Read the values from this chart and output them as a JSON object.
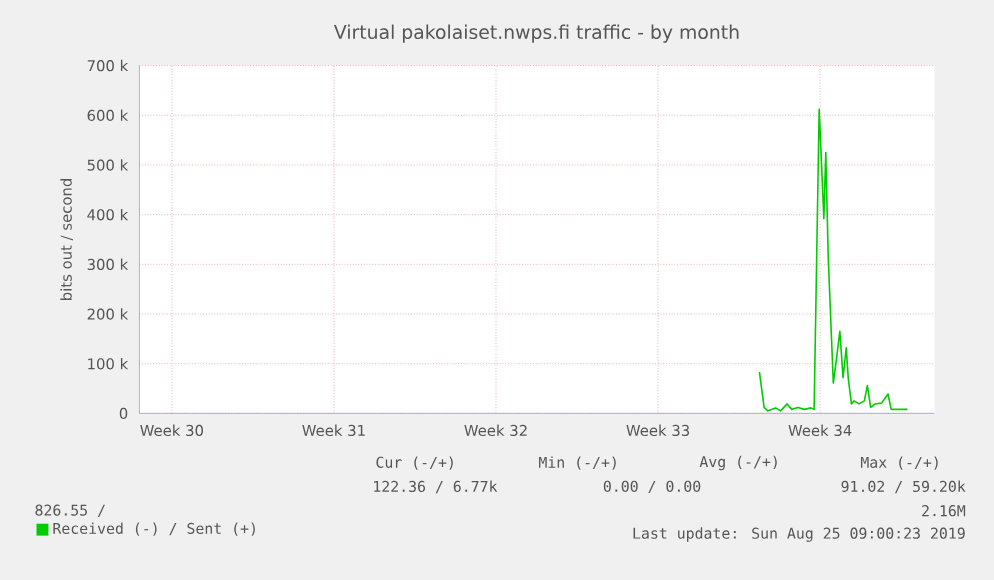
{
  "chart_data": {
    "type": "line",
    "title": "Virtual pakolaiset.nwps.fi traffic - by month",
    "ylabel": "bits out / second",
    "xlim": [
      "2019-07-22T01:00",
      "2019-08-25T09:00"
    ],
    "xticks": [
      {
        "value": "2019-07-23T10:35",
        "label": "Week 30"
      },
      {
        "value": "2019-07-30T10:35",
        "label": "Week 31"
      },
      {
        "value": "2019-08-06T10:35",
        "label": "Week 32"
      },
      {
        "value": "2019-08-13T10:35",
        "label": "Week 33"
      },
      {
        "value": "2019-08-20T10:35",
        "label": "Week 34"
      }
    ],
    "ylim": [
      0,
      700000
    ],
    "yticks": [
      0,
      {
        "value": 100000,
        "label": "100 k"
      },
      {
        "value": 200000,
        "label": "200 k"
      },
      {
        "value": 300000,
        "label": "300 k"
      },
      {
        "value": 400000,
        "label": "400 k"
      },
      {
        "value": 500000,
        "label": "500 k"
      },
      {
        "value": 600000,
        "label": "600 k"
      },
      {
        "value": 700000,
        "label": "700 k"
      }
    ],
    "grid": true,
    "legend": "bottom",
    "marker": "none",
    "line_style": "solid",
    "series": [
      {
        "name": "Received (-) / Sent (+)",
        "color": "#00cc00",
        "x": [
          "2019-08-17T19:40",
          "2019-08-18T00:30",
          "2019-08-18T04:20",
          "2019-08-18T12:30",
          "2019-08-18T17:35",
          "2019-08-19T00:20",
          "2019-08-19T05:05",
          "2019-08-19T11:35",
          "2019-08-19T18:15",
          "2019-08-20T01:00",
          "2019-08-20T04:20",
          "2019-08-20T09:35",
          "2019-08-20T14:25",
          "2019-08-20T16:25",
          "2019-08-20T19:00",
          "2019-08-21T00:15",
          "2019-08-21T03:40",
          "2019-08-21T07:00",
          "2019-08-21T10:20",
          "2019-08-21T13:40",
          "2019-08-21T15:40",
          "2019-08-21T19:00",
          "2019-08-21T21:40",
          "2019-08-22T02:55",
          "2019-08-22T08:25",
          "2019-08-22T11:35",
          "2019-08-22T14:55",
          "2019-08-22T19:40",
          "2019-08-23T02:25",
          "2019-08-23T08:55",
          "2019-08-23T12:15",
          "2019-08-23T19:00",
          "2019-08-24T05:05"
        ],
        "values": [
          83000,
          12000,
          5000,
          11000,
          5000,
          19000,
          8000,
          12000,
          8000,
          11000,
          8000,
          612000,
          392000,
          525000,
          312000,
          61000,
          112000,
          165000,
          72000,
          132000,
          72000,
          19000,
          25000,
          19000,
          25000,
          56000,
          12000,
          19000,
          21000,
          39000,
          8000,
          8000,
          8000
        ]
      }
    ],
    "annotations": [
      "Cur (-/+)",
      "Min (-/+)",
      "Avg (-/+)",
      "Max (-/+)",
      "122.36 /  6.77k",
      "0.00 /  0.00",
      "91.02 / 59.20k",
      "826.55 /",
      "2.16M",
      "Last update: Sun Aug 25 09:00:23 2019"
    ]
  }
}
